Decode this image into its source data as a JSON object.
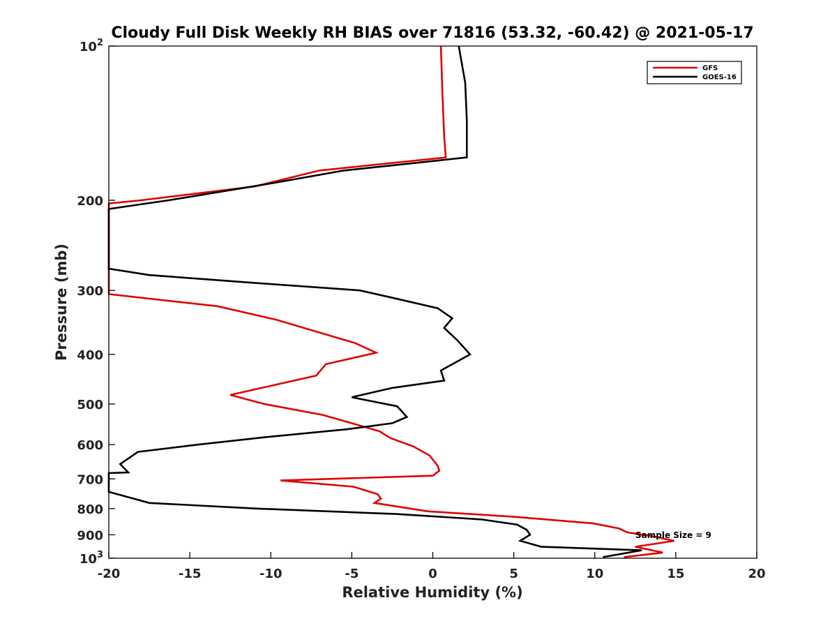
{
  "chart_data": {
    "type": "line",
    "title": "Cloudy Full Disk Weekly RH BIAS over 71816 (53.32, -60.42) @ 2021-05-17",
    "xlabel": "Relative Humidity (%)",
    "ylabel": "Pressure (mb)",
    "xlim": [
      -20,
      20
    ],
    "ylim": [
      100,
      1000
    ],
    "y_scale": "log",
    "y_reversed": true,
    "x_ticks": [
      "-20",
      "-15",
      "-10",
      "-5",
      "0",
      "5",
      "10",
      "15",
      "20"
    ],
    "y_ticks": [
      {
        "value": 100,
        "base": "10",
        "exp": "2"
      },
      {
        "value": 200,
        "label": "200"
      },
      {
        "value": 300,
        "label": "300"
      },
      {
        "value": 400,
        "label": "400"
      },
      {
        "value": 500,
        "label": "500"
      },
      {
        "value": 600,
        "label": "600"
      },
      {
        "value": 700,
        "label": "700"
      },
      {
        "value": 800,
        "label": "800"
      },
      {
        "value": 900,
        "label": "900"
      },
      {
        "value": 1000,
        "base": "10",
        "exp": "3"
      }
    ],
    "legend": {
      "position": "top-right"
    },
    "annotation": "Sample Size = 9",
    "series": [
      {
        "name": "GFS",
        "color": "#e00000",
        "points": [
          [
            0.5,
            100
          ],
          [
            0.6,
            125
          ],
          [
            0.7,
            150
          ],
          [
            0.8,
            165
          ],
          [
            -7,
            175
          ],
          [
            -11,
            188
          ],
          [
            -18,
            200
          ],
          [
            -20,
            203
          ],
          [
            -20,
            305
          ],
          [
            -13.3,
            322
          ],
          [
            -9.7,
            342
          ],
          [
            -4.8,
            380
          ],
          [
            -3.5,
            397
          ],
          [
            -6.6,
            418
          ],
          [
            -7.2,
            440
          ],
          [
            -12.5,
            480
          ],
          [
            -10.4,
            500
          ],
          [
            -6.8,
            525
          ],
          [
            -5,
            545
          ],
          [
            -3.3,
            565
          ],
          [
            -2.6,
            583
          ],
          [
            -1.2,
            605
          ],
          [
            -0.2,
            630
          ],
          [
            0.3,
            660
          ],
          [
            0.4,
            675
          ],
          [
            0,
            690
          ],
          [
            -9.4,
            705
          ],
          [
            -4.9,
            725
          ],
          [
            -3.4,
            750
          ],
          [
            -3.2,
            765
          ],
          [
            -3.6,
            780
          ],
          [
            -0.3,
            810
          ],
          [
            5,
            830
          ],
          [
            9.9,
            855
          ],
          [
            11.5,
            875
          ],
          [
            12,
            890
          ],
          [
            13.5,
            905
          ],
          [
            14.9,
            925
          ],
          [
            12.5,
            950
          ],
          [
            14.2,
            975
          ],
          [
            11.8,
            995
          ]
        ]
      },
      {
        "name": "GOES-16",
        "color": "#000000",
        "points": [
          [
            1.6,
            100
          ],
          [
            2,
            118
          ],
          [
            2.1,
            140
          ],
          [
            2.1,
            165
          ],
          [
            -5.5,
            175
          ],
          [
            -9.8,
            185
          ],
          [
            -16.3,
            200
          ],
          [
            -20,
            208
          ],
          [
            -20,
            272
          ],
          [
            -17.5,
            280
          ],
          [
            -11,
            290
          ],
          [
            -4.5,
            300
          ],
          [
            -2.5,
            310
          ],
          [
            0.3,
            325
          ],
          [
            1.2,
            340
          ],
          [
            0.7,
            355
          ],
          [
            1.5,
            375
          ],
          [
            2.3,
            400
          ],
          [
            0.5,
            430
          ],
          [
            0.7,
            450
          ],
          [
            -2.5,
            465
          ],
          [
            -5,
            485
          ],
          [
            -2.2,
            505
          ],
          [
            -1.6,
            530
          ],
          [
            -2.5,
            545
          ],
          [
            -5.3,
            560
          ],
          [
            -10.3,
            580
          ],
          [
            -14.5,
            600
          ],
          [
            -18.2,
            620
          ],
          [
            -19.3,
            655
          ],
          [
            -18.8,
            680
          ],
          [
            -20,
            682
          ],
          [
            -20,
            742
          ],
          [
            -17.5,
            780
          ],
          [
            -10.8,
            800
          ],
          [
            -2.2,
            820
          ],
          [
            3,
            840
          ],
          [
            5.2,
            860
          ],
          [
            5.8,
            880
          ],
          [
            6,
            900
          ],
          [
            5.4,
            925
          ],
          [
            6.7,
            950
          ],
          [
            12.9,
            965
          ],
          [
            10.5,
            995
          ]
        ]
      }
    ]
  }
}
